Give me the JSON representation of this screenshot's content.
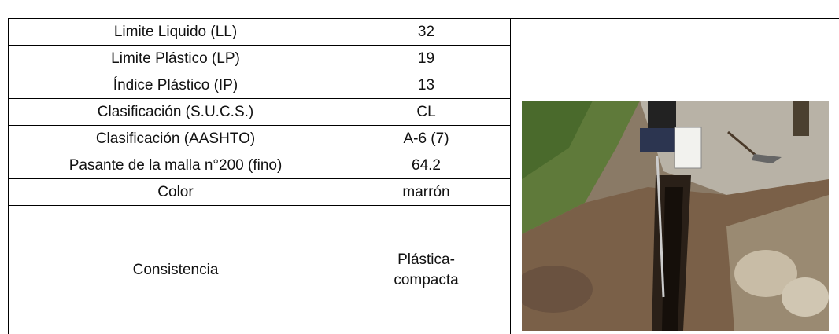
{
  "table": {
    "rows": [
      [
        "Limite Liquido (LL)",
        "32"
      ],
      [
        "Limite Plástico (LP)",
        "19"
      ],
      [
        "Índice Plástico (IP)",
        "13"
      ],
      [
        "Clasificación (S.U.C.S.)",
        "CL"
      ],
      [
        "Clasificación (AASHTO)",
        "A-6 (7)"
      ],
      [
        "Pasante de la malla n°200 (fino)",
        "64.2"
      ],
      [
        "Color",
        "marrón"
      ],
      [
        "Consistencia",
        "Plástica-compacta"
      ]
    ]
  }
}
